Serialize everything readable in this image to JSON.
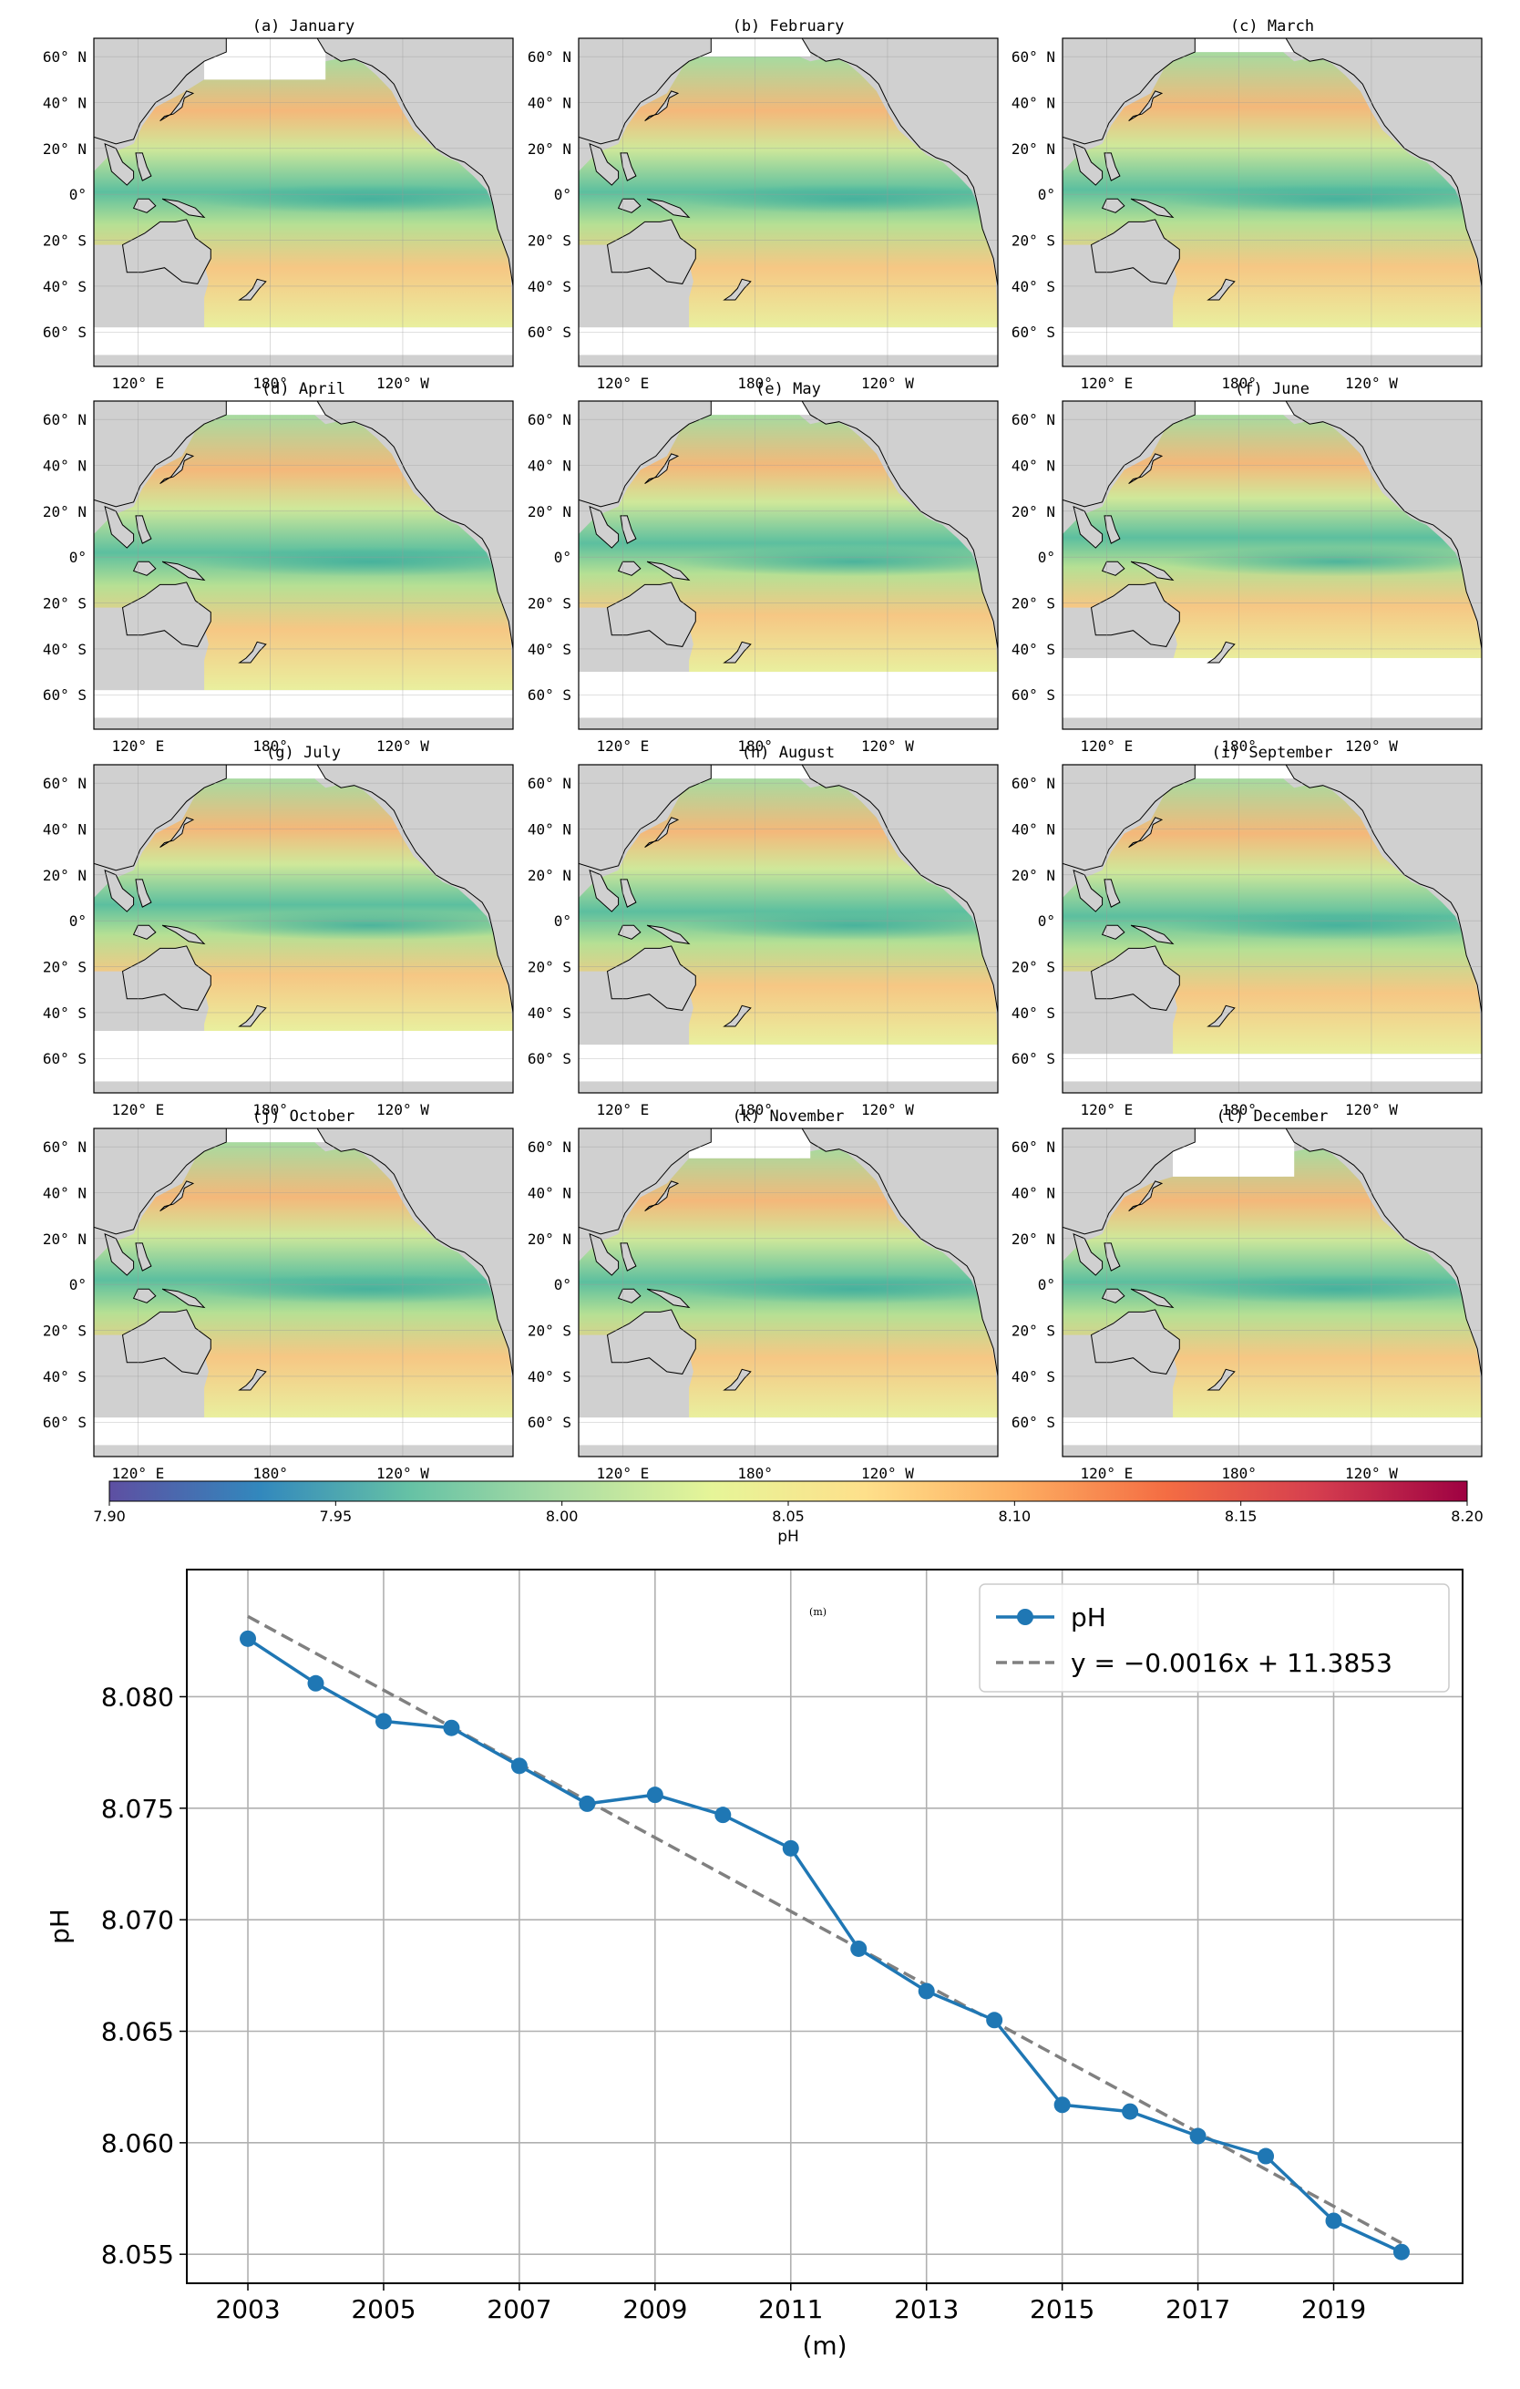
{
  "figure": {
    "maps": {
      "panels": [
        {
          "label": "(a) January",
          "south_cut": -58,
          "north_cut": 50
        },
        {
          "label": "(b) February",
          "south_cut": -58,
          "north_cut": 60
        },
        {
          "label": "(c) March",
          "south_cut": -58,
          "north_cut": 62
        },
        {
          "label": "(d) April",
          "south_cut": -58,
          "north_cut": 62
        },
        {
          "label": "(e) May",
          "south_cut": -50,
          "north_cut": 62
        },
        {
          "label": "(f) June",
          "south_cut": -44,
          "north_cut": 62
        },
        {
          "label": "(g) July",
          "south_cut": -48,
          "north_cut": 62
        },
        {
          "label": "(h) August",
          "south_cut": -54,
          "north_cut": 62
        },
        {
          "label": "(i) September",
          "south_cut": -58,
          "north_cut": 62
        },
        {
          "label": "(j) October",
          "south_cut": -58,
          "north_cut": 62
        },
        {
          "label": "(k) November",
          "south_cut": -58,
          "north_cut": 55
        },
        {
          "label": "(l) December",
          "south_cut": -58,
          "north_cut": 47
        }
      ],
      "lat_ticks": [
        "60° N",
        "40° N",
        "20° N",
        "0°",
        "20° S",
        "40° S",
        "60° S"
      ],
      "lat_values": [
        60,
        40,
        20,
        0,
        -20,
        -40,
        -60
      ],
      "lon_ticks": [
        "120° E",
        "180°",
        "120° W"
      ],
      "lon_values": [
        120,
        180,
        240
      ],
      "extent": {
        "lon_min": 100,
        "lon_max": 290,
        "lat_min": -75,
        "lat_max": 68
      }
    },
    "colorbar": {
      "label": "pH",
      "ticks": [
        "7.90",
        "7.95",
        "8.00",
        "8.05",
        "8.10",
        "8.15",
        "8.20"
      ],
      "min": 7.9,
      "max": 8.2,
      "colors": [
        "#5e4fa2",
        "#3288bd",
        "#66c2a5",
        "#abdda4",
        "#e6f598",
        "#fee08b",
        "#fdae61",
        "#f46d43",
        "#d53e4f",
        "#9e0142"
      ]
    },
    "line_chart_label": "(m)",
    "colors": {
      "ocean_base": "#c7e596",
      "land": "#d0d0d0",
      "coast": "#000000",
      "series": "#1f77b4",
      "trend": "#808080"
    }
  },
  "chart_data": {
    "type": "line",
    "title": "(m)",
    "xlabel": "(m)",
    "ylabel": "pH",
    "x": [
      2003,
      2004,
      2005,
      2006,
      2007,
      2008,
      2009,
      2010,
      2011,
      2012,
      2013,
      2014,
      2015,
      2016,
      2017,
      2018,
      2019,
      2020
    ],
    "series": [
      {
        "name": "pH",
        "values": [
          8.0826,
          8.0806,
          8.0789,
          8.0786,
          8.0769,
          8.0752,
          8.0756,
          8.0747,
          8.0732,
          8.0687,
          8.0668,
          8.0655,
          8.0617,
          8.0614,
          8.0603,
          8.0594,
          8.0565,
          8.0551
        ]
      },
      {
        "name": "y = −0.0016x + 11.3853",
        "style": "dashed",
        "slope": -0.0016,
        "intercept": 11.3853,
        "x_range": [
          2003,
          2020
        ],
        "y_range": [
          8.0836,
          8.0555
        ]
      }
    ],
    "x_ticks": [
      "2003",
      "2005",
      "2007",
      "2009",
      "2011",
      "2013",
      "2015",
      "2017",
      "2019"
    ],
    "x_tick_values": [
      2003,
      2005,
      2007,
      2009,
      2011,
      2013,
      2015,
      2017,
      2019
    ],
    "y_ticks": [
      "8.055",
      "8.060",
      "8.065",
      "8.070",
      "8.075",
      "8.080"
    ],
    "y_tick_values": [
      8.055,
      8.06,
      8.065,
      8.07,
      8.075,
      8.08
    ],
    "xlim": [
      2002.1,
      2020.9
    ],
    "ylim": [
      8.0537,
      8.0857
    ],
    "grid": true,
    "legend": "top-right"
  }
}
